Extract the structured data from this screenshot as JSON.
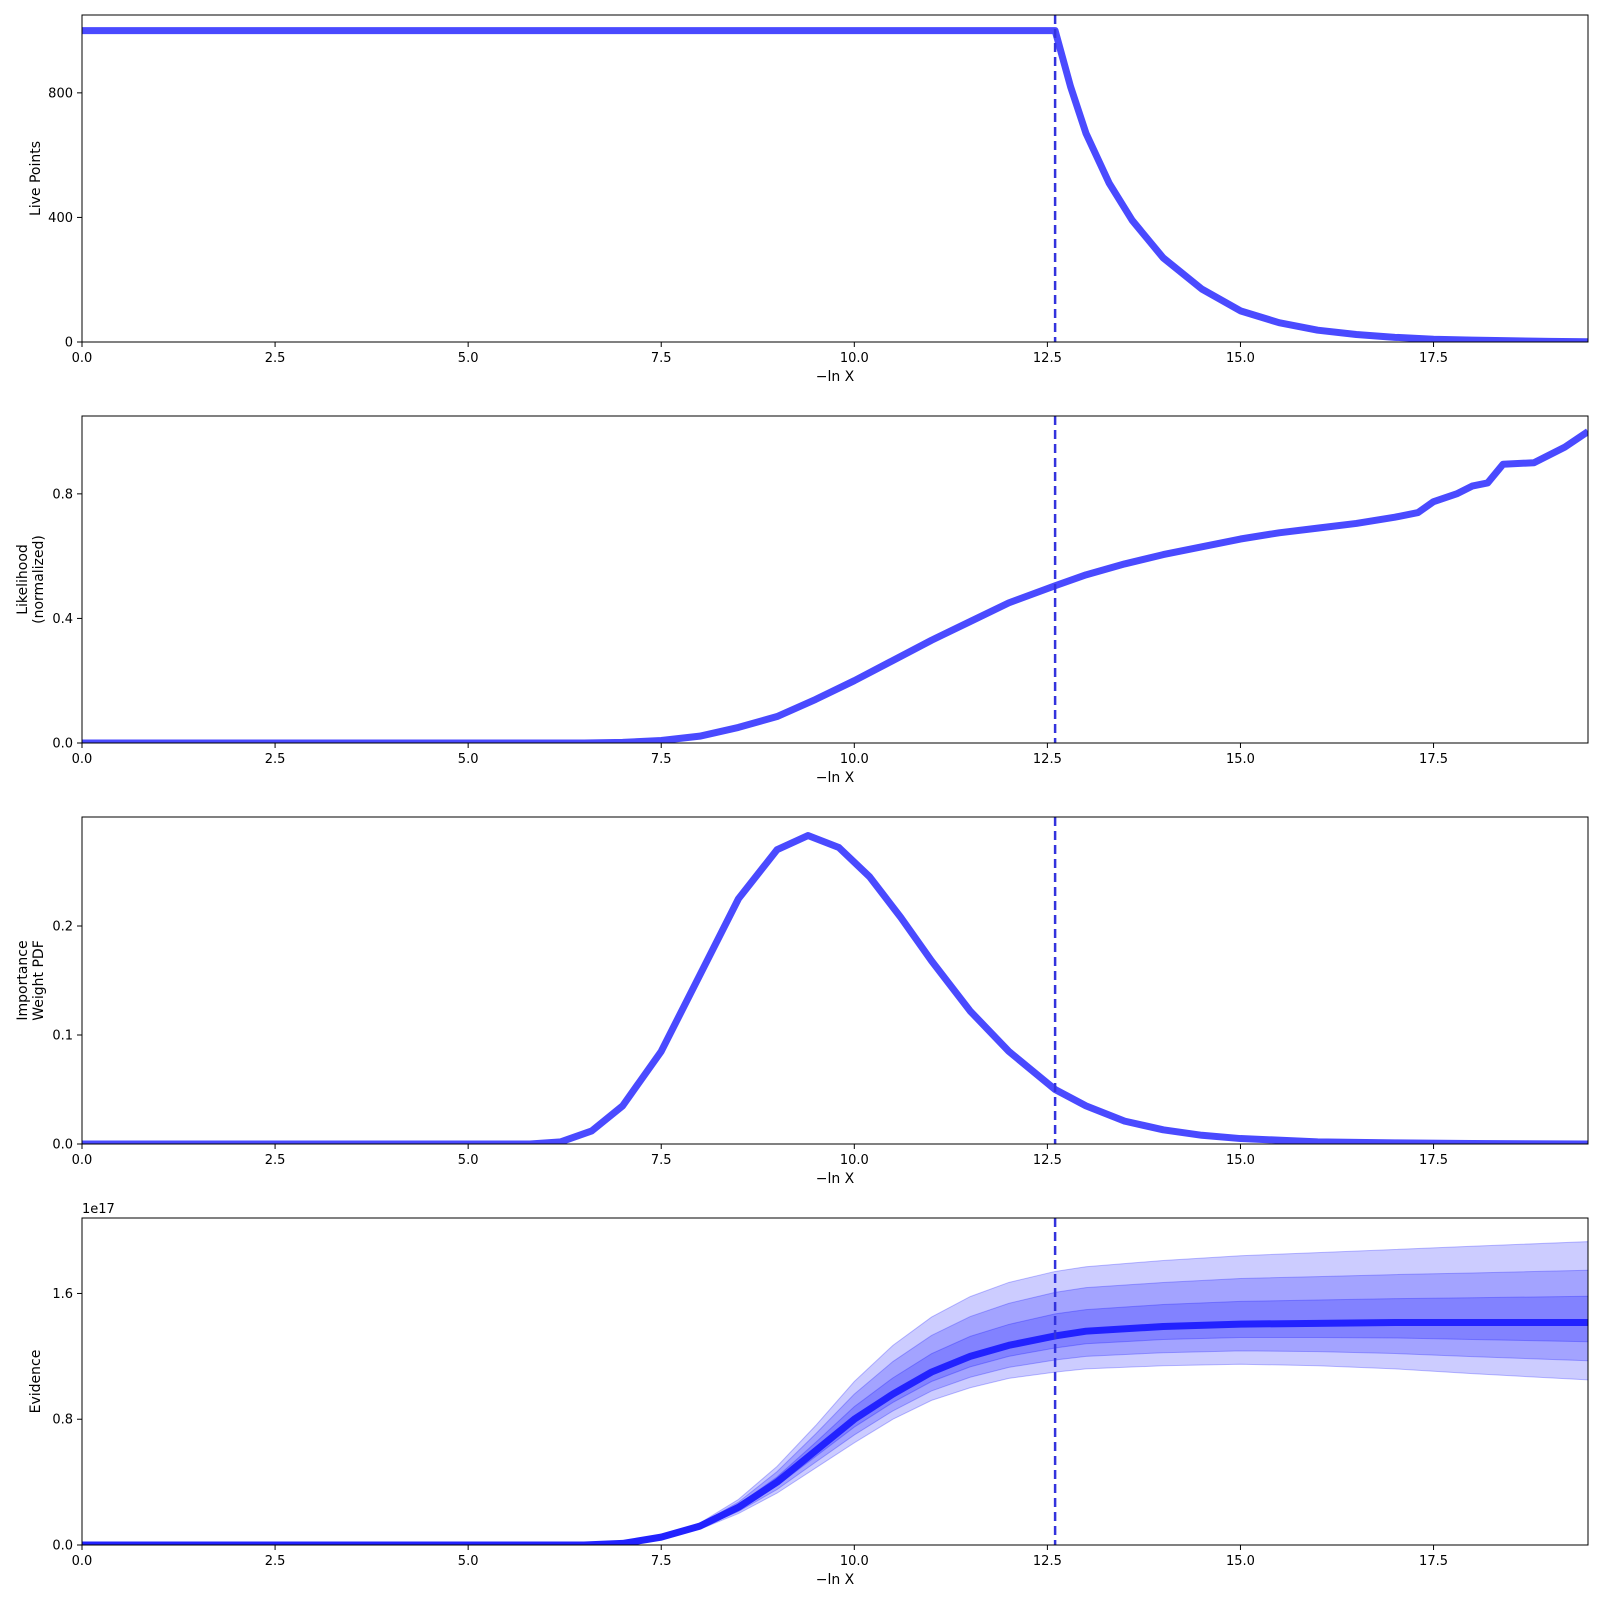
{
  "colors": {
    "line": "#4a4aff",
    "evidence_line": "#2222ff",
    "band": "#0000ff",
    "marker": "#3333dd"
  },
  "chart_data": [
    {
      "type": "line",
      "name": "live-points",
      "ylabel": [
        "Live Points"
      ],
      "xlabel": "−ln X",
      "xlim": [
        0,
        19.5
      ],
      "ylim": [
        0,
        1050
      ],
      "xticks": [
        0,
        2.5,
        5,
        7.5,
        10,
        12.5,
        15,
        17.5
      ],
      "xtick_labels": [
        "0.0",
        "2.5",
        "5.0",
        "7.5",
        "10.0",
        "12.5",
        "15.0",
        "17.5"
      ],
      "yticks": [
        0,
        400,
        800
      ],
      "ytick_labels": [
        "0",
        "400",
        "800"
      ],
      "marker_x": 12.6,
      "x": [
        0,
        12.6,
        12.8,
        13.0,
        13.3,
        13.6,
        14.0,
        14.5,
        15.0,
        15.5,
        16.0,
        16.5,
        17.0,
        17.5,
        18.0,
        18.5,
        19.0,
        19.5
      ],
      "y": [
        1000,
        1000,
        820,
        670,
        510,
        390,
        270,
        170,
        100,
        62,
        38,
        24,
        15,
        9,
        6,
        4,
        2,
        1
      ]
    },
    {
      "type": "line",
      "name": "likelihood",
      "ylabel": [
        "Likelihood",
        "(normalized)"
      ],
      "xlabel": "−ln X",
      "xlim": [
        0,
        19.5
      ],
      "ylim": [
        0,
        1.05
      ],
      "xticks": [
        0,
        2.5,
        5,
        7.5,
        10,
        12.5,
        15,
        17.5
      ],
      "xtick_labels": [
        "0.0",
        "2.5",
        "5.0",
        "7.5",
        "10.0",
        "12.5",
        "15.0",
        "17.5"
      ],
      "yticks": [
        0,
        0.4,
        0.8
      ],
      "ytick_labels": [
        "0.0",
        "0.4",
        "0.8"
      ],
      "marker_x": 12.6,
      "x": [
        0,
        6.5,
        7.0,
        7.5,
        8.0,
        8.5,
        9.0,
        9.5,
        10.0,
        10.5,
        11.0,
        11.5,
        12.0,
        12.6,
        13.0,
        13.5,
        14.0,
        14.5,
        15.0,
        15.5,
        16.0,
        16.5,
        17.0,
        17.3,
        17.5,
        17.8,
        18.0,
        18.2,
        18.4,
        18.8,
        19.2,
        19.5
      ],
      "y": [
        0,
        0,
        0.002,
        0.008,
        0.022,
        0.05,
        0.085,
        0.14,
        0.2,
        0.265,
        0.33,
        0.39,
        0.45,
        0.505,
        0.54,
        0.575,
        0.605,
        0.63,
        0.655,
        0.675,
        0.69,
        0.705,
        0.725,
        0.74,
        0.775,
        0.8,
        0.825,
        0.835,
        0.895,
        0.9,
        0.95,
        1.0
      ]
    },
    {
      "type": "line",
      "name": "importance-weight",
      "ylabel": [
        "Importance",
        "Weight PDF"
      ],
      "xlabel": "−ln X",
      "xlim": [
        0,
        19.5
      ],
      "ylim": [
        0,
        0.3
      ],
      "xticks": [
        0,
        2.5,
        5,
        7.5,
        10,
        12.5,
        15,
        17.5
      ],
      "xtick_labels": [
        "0.0",
        "2.5",
        "5.0",
        "7.5",
        "10.0",
        "12.5",
        "15.0",
        "17.5"
      ],
      "yticks": [
        0,
        0.1,
        0.2
      ],
      "ytick_labels": [
        "0.0",
        "0.1",
        "0.2"
      ],
      "marker_x": 12.6,
      "x": [
        0,
        5.8,
        6.2,
        6.6,
        7.0,
        7.5,
        8.0,
        8.5,
        9.0,
        9.4,
        9.8,
        10.2,
        10.6,
        11.0,
        11.5,
        12.0,
        12.6,
        13.0,
        13.5,
        14.0,
        14.5,
        15.0,
        16.0,
        17.0,
        18.0,
        19.5
      ],
      "y": [
        0,
        0,
        0.002,
        0.012,
        0.035,
        0.085,
        0.155,
        0.225,
        0.27,
        0.283,
        0.272,
        0.245,
        0.208,
        0.168,
        0.122,
        0.085,
        0.05,
        0.035,
        0.021,
        0.013,
        0.008,
        0.005,
        0.002,
        0.001,
        0.0005,
        0
      ]
    },
    {
      "type": "area",
      "name": "evidence",
      "ylabel": [
        "Evidence"
      ],
      "xlabel": "−ln X",
      "offset_label": "1e17",
      "xlim": [
        0,
        19.5
      ],
      "ylim": [
        0,
        2.08
      ],
      "xticks": [
        0,
        2.5,
        5,
        7.5,
        10,
        12.5,
        15,
        17.5
      ],
      "xtick_labels": [
        "0.0",
        "2.5",
        "5.0",
        "7.5",
        "10.0",
        "12.5",
        "15.0",
        "17.5"
      ],
      "yticks": [
        0,
        0.8,
        1.6
      ],
      "ytick_labels": [
        "0.0",
        "0.8",
        "1.6"
      ],
      "marker_x": 12.6,
      "x": [
        0,
        6.5,
        7.0,
        7.5,
        8.0,
        8.5,
        9.0,
        9.5,
        10.0,
        10.5,
        11.0,
        11.5,
        12.0,
        12.6,
        13.0,
        14.0,
        15.0,
        16.0,
        17.0,
        18.0,
        19.5
      ],
      "mean": [
        0,
        0,
        0.01,
        0.05,
        0.12,
        0.24,
        0.4,
        0.6,
        0.8,
        0.96,
        1.1,
        1.2,
        1.27,
        1.33,
        1.36,
        1.39,
        1.405,
        1.41,
        1.415,
        1.415,
        1.415
      ],
      "bands": [
        {
          "level": "3-sigma",
          "lower": [
            0,
            0,
            0.01,
            0.045,
            0.1,
            0.2,
            0.33,
            0.49,
            0.65,
            0.8,
            0.92,
            1.0,
            1.06,
            1.1,
            1.12,
            1.14,
            1.15,
            1.14,
            1.12,
            1.09,
            1.05
          ],
          "upper": [
            0,
            0,
            0.012,
            0.06,
            0.14,
            0.29,
            0.5,
            0.76,
            1.04,
            1.27,
            1.45,
            1.58,
            1.67,
            1.74,
            1.77,
            1.81,
            1.84,
            1.86,
            1.88,
            1.9,
            1.93
          ]
        },
        {
          "level": "2-sigma",
          "lower": [
            0,
            0,
            0.01,
            0.047,
            0.107,
            0.213,
            0.353,
            0.527,
            0.7,
            0.853,
            0.98,
            1.067,
            1.13,
            1.177,
            1.2,
            1.223,
            1.235,
            1.23,
            1.218,
            1.198,
            1.172
          ],
          "upper": [
            0,
            0,
            0.011,
            0.057,
            0.133,
            0.273,
            0.467,
            0.707,
            0.96,
            1.167,
            1.333,
            1.453,
            1.537,
            1.607,
            1.637,
            1.67,
            1.695,
            1.707,
            1.72,
            1.73,
            1.748
          ]
        },
        {
          "level": "1-sigma",
          "lower": [
            0,
            0,
            0.01,
            0.048,
            0.113,
            0.227,
            0.377,
            0.563,
            0.75,
            0.907,
            1.04,
            1.133,
            1.2,
            1.253,
            1.28,
            1.307,
            1.32,
            1.32,
            1.317,
            1.307,
            1.293
          ],
          "upper": [
            0,
            0,
            0.01,
            0.053,
            0.127,
            0.257,
            0.433,
            0.653,
            0.88,
            1.063,
            1.217,
            1.327,
            1.403,
            1.47,
            1.497,
            1.53,
            1.55,
            1.558,
            1.567,
            1.573,
            1.582
          ]
        }
      ]
    }
  ]
}
